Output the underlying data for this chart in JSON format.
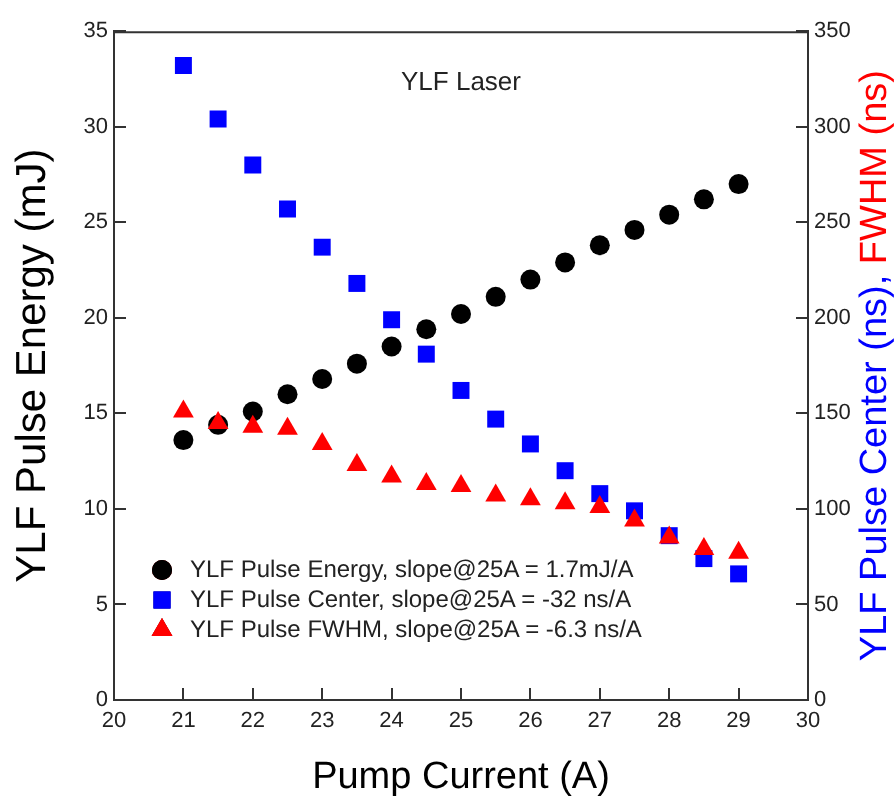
{
  "chart_data": {
    "type": "scatter",
    "title": "YLF Laser",
    "xlabel": "Pump Current (A)",
    "ylabel": "YLF Pulse Energy (mJ)",
    "y2label": "YLF Pulse Center (ns), FWHM (ns)",
    "x": [
      21,
      21.5,
      22,
      22.5,
      23,
      23.5,
      24,
      24.5,
      25,
      25.5,
      26,
      26.5,
      27,
      27.5,
      28,
      28.5,
      29
    ],
    "series": [
      {
        "name": "YLF Pulse Energy, slope@25A = 1.7mJ/A",
        "color": "#000000",
        "marker": "circle",
        "values": [
          13.6,
          14.4,
          15.1,
          16.0,
          16.8,
          17.6,
          18.5,
          19.4,
          20.2,
          21.1,
          22.0,
          22.9,
          23.8,
          24.6,
          25.4,
          26.2,
          27.0
        ]
      },
      {
        "name": "YLF Pulse Center, slope@25A = -32 ns/A",
        "color": "#0000ff",
        "marker": "square",
        "axis": "y2",
        "values": [
          332,
          304,
          280,
          257,
          237,
          218,
          199,
          181,
          162,
          147,
          134,
          120,
          108,
          99,
          86,
          74,
          66
        ]
      },
      {
        "name": "YLF Pulse FWHM, slope@25A = -6.3 ns/A",
        "color": "#ff0000",
        "marker": "triangle",
        "axis": "y2",
        "values": [
          151,
          145,
          143,
          142,
          134,
          123,
          117,
          113,
          112,
          107,
          105,
          103,
          101,
          94,
          85,
          79,
          77
        ]
      }
    ],
    "xlim": [
      20,
      30
    ],
    "xticks": [
      20,
      21,
      22,
      23,
      24,
      25,
      26,
      27,
      28,
      29,
      30
    ],
    "ylim": [
      0,
      35
    ],
    "yticks": [
      0,
      5,
      10,
      15,
      20,
      25,
      30,
      35
    ],
    "y2lim": [
      0,
      350
    ],
    "y2ticks": [
      0,
      50,
      100,
      150,
      200,
      250,
      300,
      350
    ],
    "legend": "bottom left",
    "grid": false
  }
}
